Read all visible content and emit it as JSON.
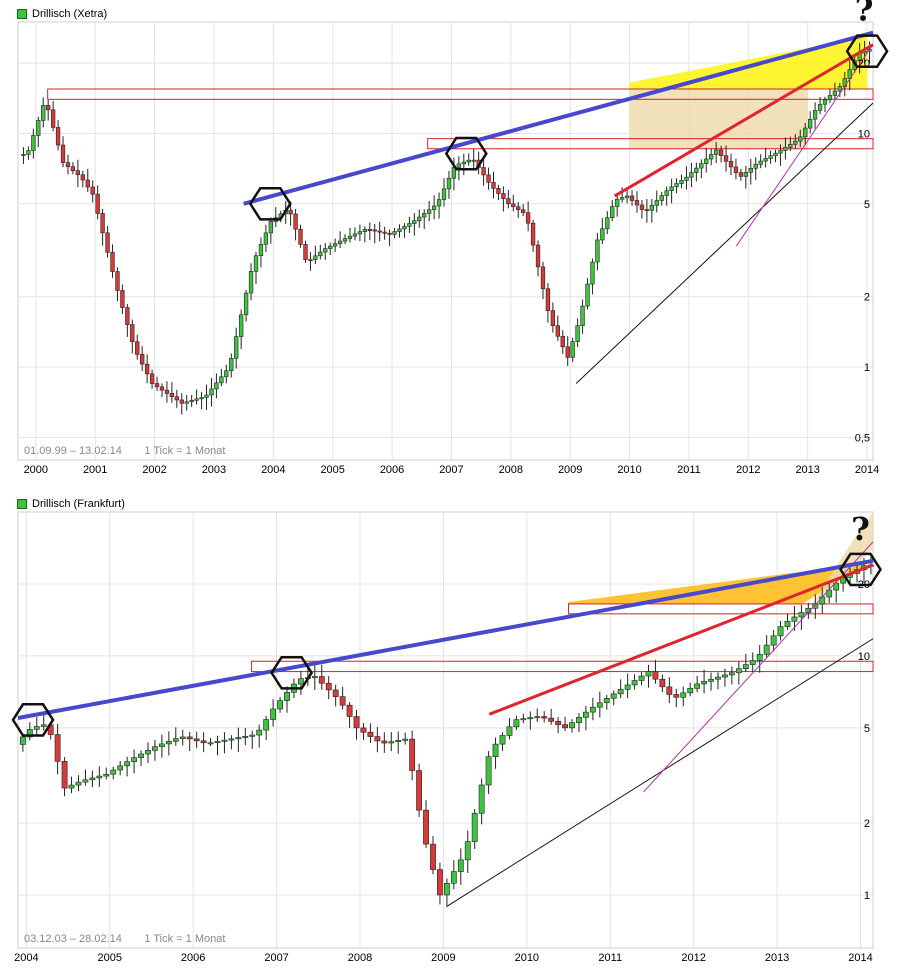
{
  "chart_data": [
    {
      "type": "candlestick",
      "title": "Drillisch (Xetra)",
      "range_text": "01.09.99 – 13.02.14",
      "tick_text": "1 Tick = 1 Monat",
      "y_scale": "log",
      "ylim": [
        0.4,
        30
      ],
      "y_ticks": [
        0.5,
        1,
        2,
        5,
        10,
        20
      ],
      "y_tick_labels": [
        "0,5",
        "1",
        "2",
        "5",
        "10",
        "20"
      ],
      "x_range": [
        1999.7,
        2014.1
      ],
      "x_ticks": [
        2000,
        2001,
        2002,
        2003,
        2004,
        2005,
        2006,
        2007,
        2008,
        2009,
        2010,
        2011,
        2012,
        2013,
        2014
      ],
      "x_tick_labels": [
        "2000",
        "2001",
        "2002",
        "2003",
        "2004",
        "2005",
        "2006",
        "2007",
        "2008",
        "2009",
        "2010",
        "2011",
        "2012",
        "2013",
        "2014"
      ],
      "grid": true,
      "legend": "top-left",
      "anchors": [
        [
          1999.7,
          8.0
        ],
        [
          1999.9,
          8.2
        ],
        [
          2000.2,
          14.0
        ],
        [
          2000.5,
          7.5
        ],
        [
          2000.8,
          6.5
        ],
        [
          2001.0,
          5.5
        ],
        [
          2001.4,
          2.2
        ],
        [
          2001.7,
          1.2
        ],
        [
          2002.0,
          0.85
        ],
        [
          2002.5,
          0.7
        ],
        [
          2002.9,
          0.75
        ],
        [
          2003.3,
          1.0
        ],
        [
          2003.7,
          2.8
        ],
        [
          2004.0,
          4.2
        ],
        [
          2004.3,
          4.8
        ],
        [
          2004.6,
          2.8
        ],
        [
          2004.9,
          3.2
        ],
        [
          2005.3,
          3.6
        ],
        [
          2005.6,
          3.9
        ],
        [
          2006.0,
          3.7
        ],
        [
          2006.4,
          4.2
        ],
        [
          2006.8,
          5.0
        ],
        [
          2007.1,
          7.3
        ],
        [
          2007.4,
          7.8
        ],
        [
          2007.7,
          6.0
        ],
        [
          2008.0,
          5.0
        ],
        [
          2008.3,
          4.5
        ],
        [
          2008.7,
          1.6
        ],
        [
          2009.0,
          1.1
        ],
        [
          2009.2,
          1.6
        ],
        [
          2009.5,
          3.5
        ],
        [
          2009.8,
          5.2
        ],
        [
          2010.0,
          5.4
        ],
        [
          2010.3,
          4.6
        ],
        [
          2010.7,
          5.8
        ],
        [
          2011.0,
          6.5
        ],
        [
          2011.5,
          8.5
        ],
        [
          2011.9,
          6.5
        ],
        [
          2012.2,
          7.5
        ],
        [
          2012.6,
          8.5
        ],
        [
          2012.9,
          9.5
        ],
        [
          2013.2,
          13.0
        ],
        [
          2013.6,
          16.0
        ],
        [
          2013.9,
          22.0
        ],
        [
          2014.1,
          23.0
        ]
      ],
      "markers": [
        {
          "x": 2003.95,
          "y": 5.0
        },
        {
          "x": 2007.25,
          "y": 8.2
        },
        {
          "x": 2014.0,
          "y": 22.5
        }
      ],
      "annotations": [
        {
          "text": "?",
          "x": 2013.95,
          "y": 33.0
        }
      ],
      "trendlines": {
        "blue": [
          [
            2003.5,
            5.0
          ],
          [
            2014.1,
            27.0
          ]
        ],
        "red": [
          [
            2009.75,
            5.4
          ],
          [
            2014.1,
            24.0
          ]
        ],
        "magenta": [
          [
            2011.8,
            3.3
          ],
          [
            2014.1,
            24.0
          ]
        ],
        "black": [
          [
            2009.1,
            0.85
          ],
          [
            2014.1,
            13.5
          ]
        ]
      },
      "channels": [
        [
          2000.2,
          2014.1,
          14.0,
          15.5
        ],
        [
          2006.6,
          2014.1,
          8.6,
          9.5
        ]
      ],
      "fills": [
        {
          "color": "#FFF200",
          "points": [
            [
              2010.0,
              15.5
            ],
            [
              2014.0,
              15.5
            ],
            [
              2014.0,
              26.0
            ],
            [
              2010.0,
              16.5
            ]
          ]
        },
        {
          "color": "#EED9A8",
          "points": [
            [
              2010.0,
              8.6
            ],
            [
              2013.0,
              8.6
            ],
            [
              2013.0,
              15.5
            ],
            [
              2010.0,
              15.5
            ]
          ]
        }
      ]
    },
    {
      "type": "candlestick",
      "title": "Drillisch (Frankfurt)",
      "range_text": "03.12.03 – 28.02.14",
      "tick_text": "1 Tick = 1 Monat",
      "y_scale": "log",
      "ylim": [
        0.6,
        40
      ],
      "y_ticks": [
        1,
        2,
        5,
        10,
        20
      ],
      "y_tick_labels": [
        "1",
        "2",
        "5",
        "10",
        "20"
      ],
      "x_range": [
        2003.9,
        2014.15
      ],
      "x_ticks": [
        2004,
        2005,
        2006,
        2007,
        2008,
        2009,
        2010,
        2011,
        2012,
        2013,
        2014
      ],
      "x_tick_labels": [
        "2004",
        "2005",
        "2006",
        "2007",
        "2008",
        "2009",
        "2010",
        "2011",
        "2012",
        "2013",
        "2014"
      ],
      "grid": true,
      "legend": "top-left",
      "anchors": [
        [
          2003.9,
          4.2
        ],
        [
          2004.1,
          5.0
        ],
        [
          2004.3,
          5.2
        ],
        [
          2004.5,
          2.8
        ],
        [
          2004.7,
          3.0
        ],
        [
          2005.0,
          3.2
        ],
        [
          2005.3,
          3.7
        ],
        [
          2005.6,
          4.2
        ],
        [
          2005.9,
          4.6
        ],
        [
          2006.2,
          4.3
        ],
        [
          2006.5,
          4.5
        ],
        [
          2006.8,
          4.7
        ],
        [
          2007.0,
          6.0
        ],
        [
          2007.3,
          8.0
        ],
        [
          2007.5,
          8.2
        ],
        [
          2007.8,
          6.5
        ],
        [
          2008.0,
          5.0
        ],
        [
          2008.3,
          4.3
        ],
        [
          2008.6,
          4.5
        ],
        [
          2008.8,
          1.8
        ],
        [
          2009.0,
          1.0
        ],
        [
          2009.3,
          1.5
        ],
        [
          2009.6,
          4.0
        ],
        [
          2009.9,
          5.4
        ],
        [
          2010.2,
          5.6
        ],
        [
          2010.5,
          5.0
        ],
        [
          2010.8,
          6.0
        ],
        [
          2011.1,
          7.0
        ],
        [
          2011.5,
          8.6
        ],
        [
          2011.8,
          6.6
        ],
        [
          2012.1,
          7.7
        ],
        [
          2012.5,
          8.5
        ],
        [
          2012.8,
          9.8
        ],
        [
          2013.1,
          13.5
        ],
        [
          2013.5,
          16.5
        ],
        [
          2013.8,
          21.0
        ],
        [
          2014.1,
          24.0
        ]
      ],
      "markers": [
        {
          "x": 2004.08,
          "y": 5.4
        },
        {
          "x": 2007.18,
          "y": 8.5
        },
        {
          "x": 2014.0,
          "y": 23.0
        }
      ],
      "annotations": [
        {
          "text": "?",
          "x": 2014.0,
          "y": 33.0
        }
      ],
      "trendlines": {
        "blue": [
          [
            2003.9,
            5.5
          ],
          [
            2014.15,
            25.0
          ]
        ],
        "red": [
          [
            2009.55,
            5.7
          ],
          [
            2014.15,
            24.0
          ]
        ],
        "magenta": [
          [
            2011.4,
            2.7
          ],
          [
            2014.15,
            30.0
          ]
        ],
        "black": [
          [
            2009.05,
            0.9
          ],
          [
            2014.15,
            11.8
          ]
        ]
      },
      "channels": [
        [
          2010.5,
          2014.15,
          15.0,
          16.5
        ],
        [
          2006.7,
          2014.15,
          8.6,
          9.5
        ]
      ],
      "fills": [
        {
          "color": "#FFB400",
          "points": [
            [
              2010.5,
              16.5
            ],
            [
              2013.3,
              16.5
            ],
            [
              2014.1,
              24.5
            ],
            [
              2010.5,
              16.8
            ]
          ]
        },
        {
          "color": "#EED9A8",
          "points": [
            [
              2013.4,
              16.0
            ],
            [
              2014.15,
              28.0
            ],
            [
              2014.15,
              40.0
            ],
            [
              2013.9,
              30.0
            ]
          ]
        }
      ]
    }
  ]
}
